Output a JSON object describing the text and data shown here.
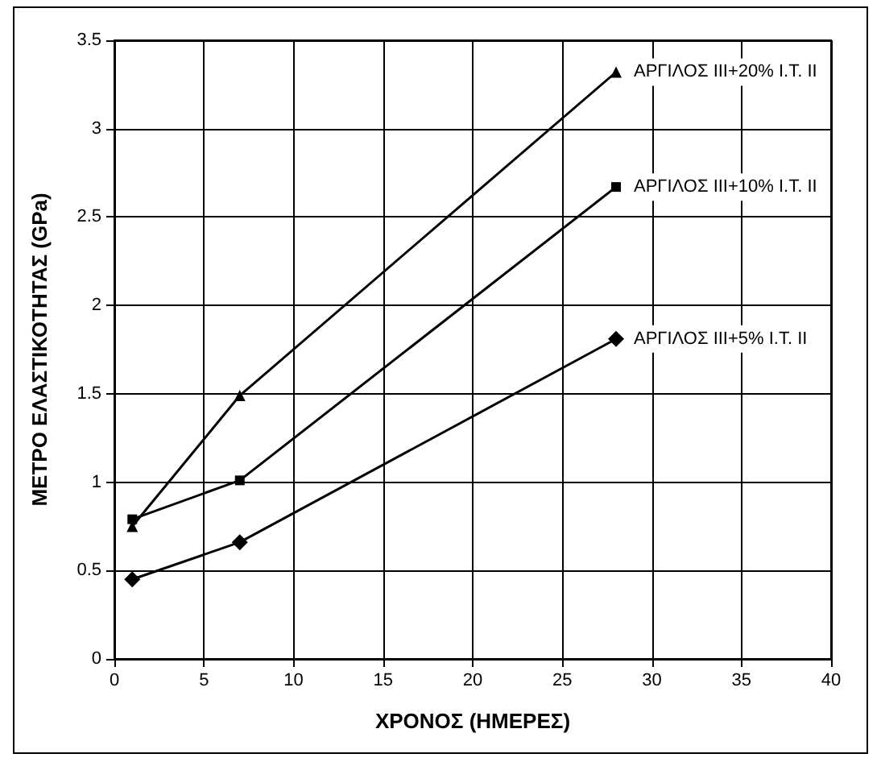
{
  "chart_data": {
    "type": "line",
    "xlabel": "ΧΡΟΝΟΣ (ΗΜΕΡΕΣ)",
    "ylabel": "ΜΕΤΡΟ ΕΛΑΣΤΙΚΟΤΗΤΑΣ (GPa)",
    "x": [
      1,
      7,
      28
    ],
    "series": [
      {
        "name": "ΑΡΓΙΛΟΣ ΙΙΙ+20% Ι.Τ. ΙΙ",
        "color": "#000000",
        "marker": "triangle",
        "values": [
          0.75,
          1.49,
          3.32
        ]
      },
      {
        "name": "ΑΡΓΙΛΟΣ ΙΙΙ+10% Ι.Τ. ΙΙ",
        "color": "#000000",
        "marker": "square",
        "values": [
          0.79,
          1.01,
          2.67
        ]
      },
      {
        "name": "ΑΡΓΙΛΟΣ ΙΙΙ+5% Ι.Τ. ΙΙ",
        "color": "#000000",
        "marker": "diamond",
        "values": [
          0.45,
          0.66,
          1.81
        ]
      }
    ],
    "xlim": [
      0,
      40
    ],
    "xticks": [
      0,
      5,
      10,
      15,
      20,
      25,
      30,
      35,
      40
    ],
    "ylim": [
      0,
      3.5
    ],
    "yticks": [
      0,
      0.5,
      1,
      1.5,
      2,
      2.5,
      3,
      3.5
    ],
    "grid": true,
    "legend": false,
    "line_style": "solid"
  }
}
